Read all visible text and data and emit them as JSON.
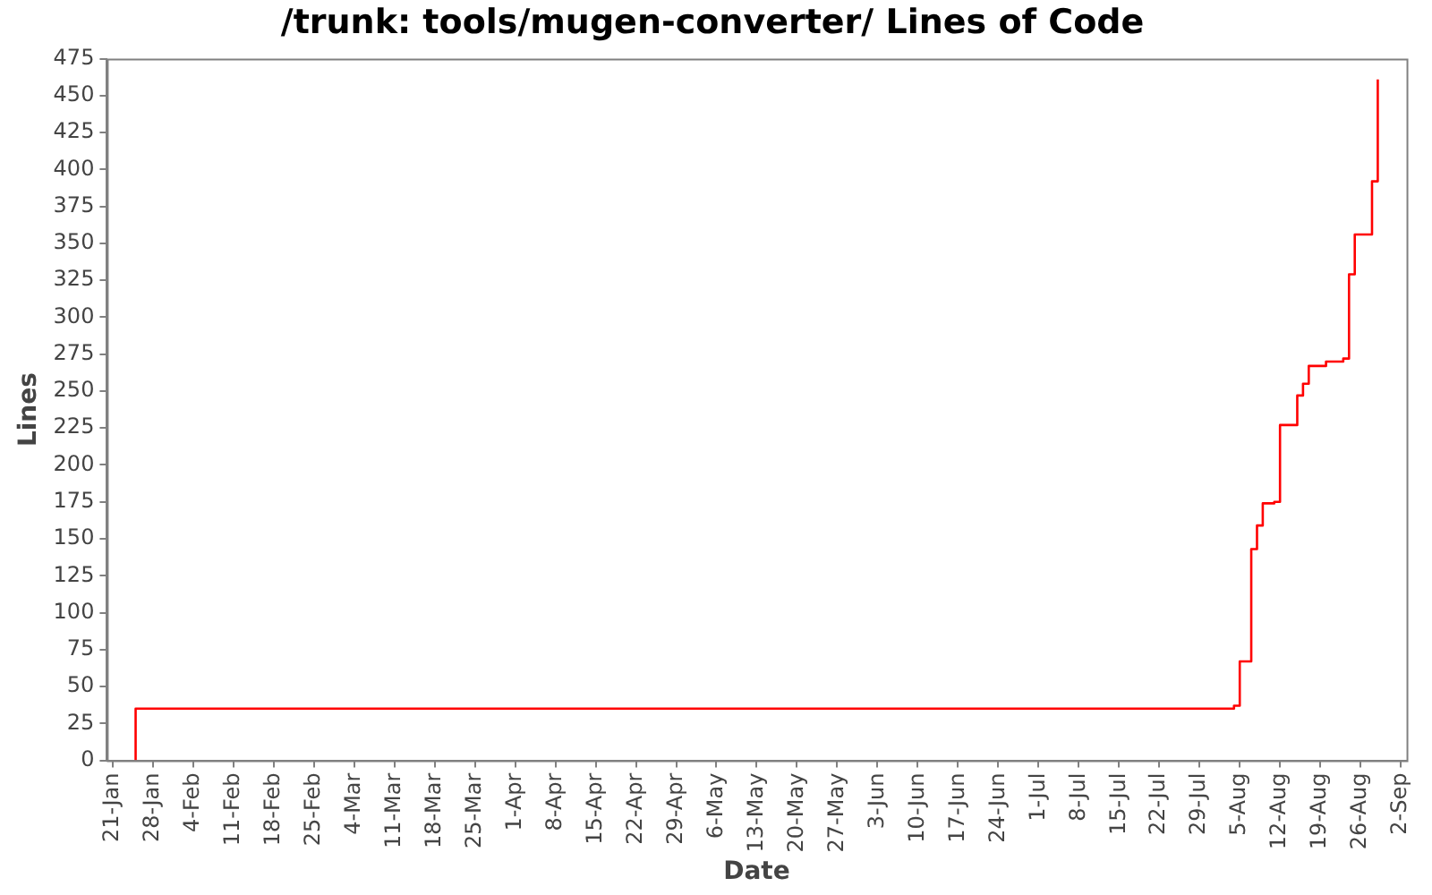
{
  "chart_data": {
    "type": "step",
    "title": "/trunk: tools/mugen-converter/ Lines of Code",
    "xlabel": "Date",
    "ylabel": "Lines",
    "legend": false,
    "grid": false,
    "marker": "none",
    "xlim": [
      "--01-20",
      "--09-03"
    ],
    "xticks": [
      {
        "value": "--01-21",
        "label": "21-Jan"
      },
      {
        "value": "--01-28",
        "label": "28-Jan"
      },
      {
        "value": "--02-04",
        "label": "4-Feb"
      },
      {
        "value": "--02-11",
        "label": "11-Feb"
      },
      {
        "value": "--02-18",
        "label": "18-Feb"
      },
      {
        "value": "--02-25",
        "label": "25-Feb"
      },
      {
        "value": "--03-04",
        "label": "4-Mar"
      },
      {
        "value": "--03-11",
        "label": "11-Mar"
      },
      {
        "value": "--03-18",
        "label": "18-Mar"
      },
      {
        "value": "--03-25",
        "label": "25-Mar"
      },
      {
        "value": "--04-01",
        "label": "1-Apr"
      },
      {
        "value": "--04-08",
        "label": "8-Apr"
      },
      {
        "value": "--04-15",
        "label": "15-Apr"
      },
      {
        "value": "--04-22",
        "label": "22-Apr"
      },
      {
        "value": "--04-29",
        "label": "29-Apr"
      },
      {
        "value": "--05-06",
        "label": "6-May"
      },
      {
        "value": "--05-13",
        "label": "13-May"
      },
      {
        "value": "--05-20",
        "label": "20-May"
      },
      {
        "value": "--05-27",
        "label": "27-May"
      },
      {
        "value": "--06-03",
        "label": "3-Jun"
      },
      {
        "value": "--06-10",
        "label": "10-Jun"
      },
      {
        "value": "--06-17",
        "label": "17-Jun"
      },
      {
        "value": "--06-24",
        "label": "24-Jun"
      },
      {
        "value": "--07-01",
        "label": "1-Jul"
      },
      {
        "value": "--07-08",
        "label": "8-Jul"
      },
      {
        "value": "--07-15",
        "label": "15-Jul"
      },
      {
        "value": "--07-22",
        "label": "22-Jul"
      },
      {
        "value": "--07-29",
        "label": "29-Jul"
      },
      {
        "value": "--08-05",
        "label": "5-Aug"
      },
      {
        "value": "--08-12",
        "label": "12-Aug"
      },
      {
        "value": "--08-19",
        "label": "19-Aug"
      },
      {
        "value": "--08-26",
        "label": "26-Aug"
      },
      {
        "value": "--09-02",
        "label": "2-Sep"
      }
    ],
    "ylim": [
      0,
      475
    ],
    "yticks": [
      0,
      25,
      50,
      75,
      100,
      125,
      150,
      175,
      200,
      225,
      250,
      275,
      300,
      325,
      350,
      375,
      400,
      425,
      450,
      475
    ],
    "series": [
      {
        "color": "#ff0000",
        "x": [
          "--01-25",
          "--01-25",
          "--08-04",
          "--08-05",
          "--08-05",
          "--08-07",
          "--08-08",
          "--08-09",
          "--08-11",
          "--08-12",
          "--08-15",
          "--08-16",
          "--08-17",
          "--08-20",
          "--08-23",
          "--08-24",
          "--08-24",
          "--08-25",
          "--08-28",
          "--08-28",
          "--08-29",
          "--08-29",
          "--08-29"
        ],
        "values": [
          0,
          35,
          37,
          66,
          67,
          143,
          159,
          174,
          175,
          227,
          247,
          255,
          267,
          270,
          272,
          299,
          329,
          356,
          380,
          392,
          398,
          421,
          461
        ]
      }
    ]
  }
}
